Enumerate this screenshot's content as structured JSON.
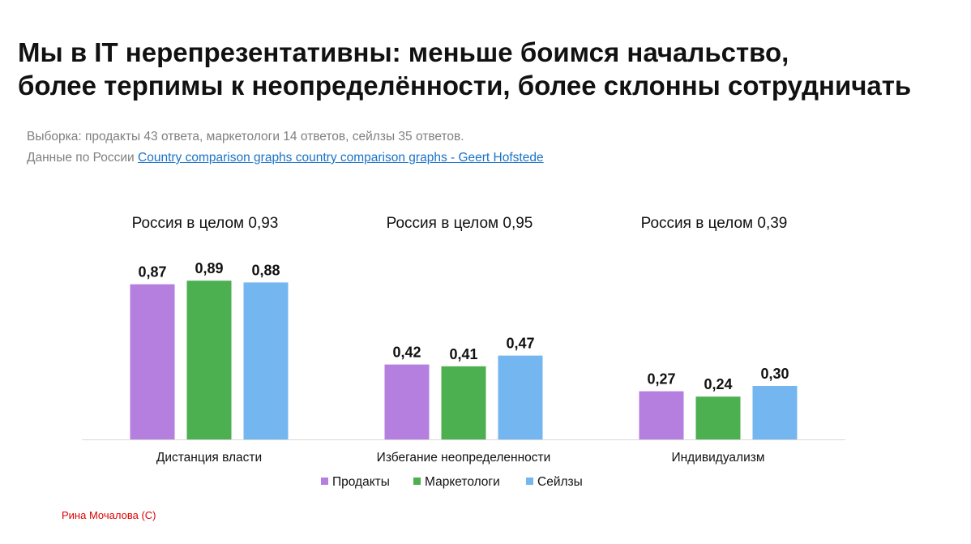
{
  "title": {
    "line1": "Мы в IT нерепрезентативны: меньше боимся начальство,",
    "line2": "более терпимы к неопределённости, более склонны сотрудничать"
  },
  "subtitle": {
    "sample": "Выборка: продакты 43 ответа, маркетологи 14 ответов, сейлзы 35 ответов.",
    "source_prefix": "Данные по России ",
    "source_link": "Country comparison graphs country comparison graphs - Geert Hofstede"
  },
  "credit": "Рина Мочалова (С)",
  "chart_data": {
    "type": "bar",
    "categories": [
      "Дистанция власти",
      "Избегание неопределенности",
      "Индивидуализм"
    ],
    "group_labels": [
      "Россия в целом 0,93",
      "Россия в целом 0,95",
      "Россия в целом 0,39"
    ],
    "series": [
      {
        "name": "Продакты",
        "color": "#b57fe0",
        "values": [
          0.87,
          0.42,
          0.27
        ],
        "labels": [
          "0,87",
          "0,42",
          "0,27"
        ]
      },
      {
        "name": "Маркетологи",
        "color": "#4caf50",
        "values": [
          0.89,
          0.41,
          0.24
        ],
        "labels": [
          "0,89",
          "0,41",
          "0,24"
        ]
      },
      {
        "name": "Сейлзы",
        "color": "#74b6f0",
        "values": [
          0.88,
          0.47,
          0.3
        ],
        "labels": [
          "0,88",
          "0,47",
          "0,30"
        ]
      }
    ],
    "ylim": [
      0,
      1
    ],
    "grid": false,
    "legend": "bottom-center"
  }
}
